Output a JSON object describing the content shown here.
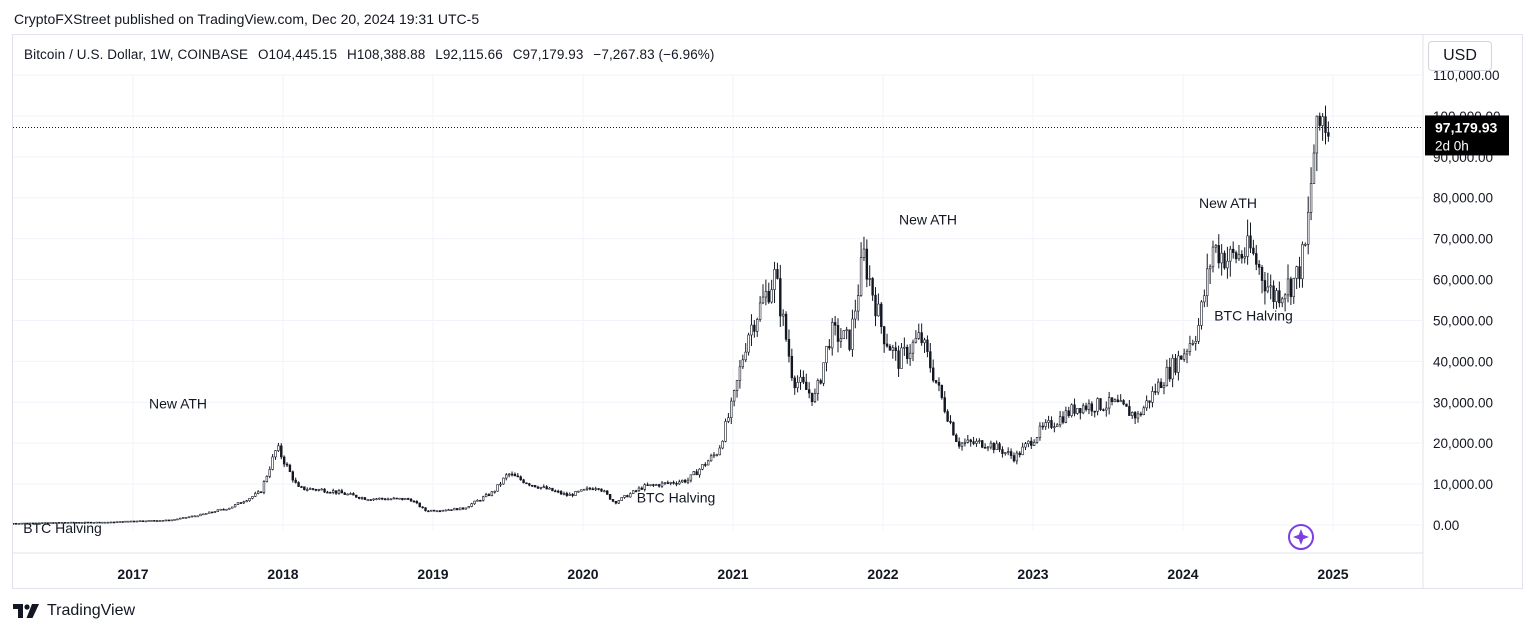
{
  "header": {
    "publish_line": "CryptoFXStreet published on TradingView.com, Dec 20, 2024 19:31 UTC-5"
  },
  "legend": {
    "symbol": "Bitcoin / U.S. Dollar, 1W, COINBASE",
    "open": "O104,445.15",
    "high": "H108,388.88",
    "low": "L92,115.66",
    "close": "C97,179.93",
    "change": "−7,267.83 (−6.96%)"
  },
  "currency_button": "USD",
  "last_price": {
    "price_label": "97,179.93",
    "countdown_label": "2d 0h"
  },
  "footer": {
    "brand": "TradingView"
  },
  "chart_data": {
    "type": "candlestick",
    "series": [
      {
        "name": "Bitcoin / U.S. Dollar, 1W, COINBASE"
      }
    ],
    "x_tick_labels": [
      "2017",
      "2018",
      "2019",
      "2020",
      "2021",
      "2022",
      "2023",
      "2024",
      "2025"
    ],
    "y_tick_labels": [
      "0.00",
      "10,000.00",
      "20,000.00",
      "30,000.00",
      "40,000.00",
      "50,000.00",
      "60,000.00",
      "70,000.00",
      "80,000.00",
      "90,000.00",
      "100,000.00",
      "110,000.00"
    ],
    "ylim": [
      0,
      110000
    ],
    "xlim": [
      2016.2,
      2025.6
    ],
    "last_value": 97179.93,
    "key_points": [
      {
        "t": 2016.2,
        "v": 420
      },
      {
        "t": 2016.55,
        "v": 650
      },
      {
        "t": 2016.85,
        "v": 700
      },
      {
        "t": 2017.0,
        "v": 1000
      },
      {
        "t": 2017.25,
        "v": 1200
      },
      {
        "t": 2017.45,
        "v": 2500
      },
      {
        "t": 2017.65,
        "v": 4300
      },
      {
        "t": 2017.85,
        "v": 8000
      },
      {
        "t": 2017.96,
        "v": 19000
      },
      {
        "t": 2018.1,
        "v": 9000
      },
      {
        "t": 2018.3,
        "v": 8500
      },
      {
        "t": 2018.55,
        "v": 6500
      },
      {
        "t": 2018.85,
        "v": 6300
      },
      {
        "t": 2018.95,
        "v": 3500
      },
      {
        "t": 2019.2,
        "v": 4000
      },
      {
        "t": 2019.4,
        "v": 8000
      },
      {
        "t": 2019.5,
        "v": 12500
      },
      {
        "t": 2019.65,
        "v": 10000
      },
      {
        "t": 2019.9,
        "v": 7200
      },
      {
        "t": 2020.1,
        "v": 9500
      },
      {
        "t": 2020.21,
        "v": 5500
      },
      {
        "t": 2020.4,
        "v": 9300
      },
      {
        "t": 2020.7,
        "v": 11000
      },
      {
        "t": 2020.9,
        "v": 18000
      },
      {
        "t": 2021.0,
        "v": 30000
      },
      {
        "t": 2021.1,
        "v": 47000
      },
      {
        "t": 2021.28,
        "v": 61000
      },
      {
        "t": 2021.4,
        "v": 36000
      },
      {
        "t": 2021.55,
        "v": 31000
      },
      {
        "t": 2021.65,
        "v": 47000
      },
      {
        "t": 2021.78,
        "v": 45000
      },
      {
        "t": 2021.87,
        "v": 66000
      },
      {
        "t": 2022.0,
        "v": 47000
      },
      {
        "t": 2022.1,
        "v": 40000
      },
      {
        "t": 2022.25,
        "v": 46000
      },
      {
        "t": 2022.4,
        "v": 30000
      },
      {
        "t": 2022.5,
        "v": 20000
      },
      {
        "t": 2022.7,
        "v": 20000
      },
      {
        "t": 2022.88,
        "v": 16500
      },
      {
        "t": 2023.05,
        "v": 23000
      },
      {
        "t": 2023.3,
        "v": 29000
      },
      {
        "t": 2023.55,
        "v": 29500
      },
      {
        "t": 2023.7,
        "v": 26500
      },
      {
        "t": 2023.85,
        "v": 35000
      },
      {
        "t": 2024.0,
        "v": 42000
      },
      {
        "t": 2024.1,
        "v": 48000
      },
      {
        "t": 2024.2,
        "v": 68000
      },
      {
        "t": 2024.3,
        "v": 65000
      },
      {
        "t": 2024.45,
        "v": 67000
      },
      {
        "t": 2024.6,
        "v": 56000
      },
      {
        "t": 2024.75,
        "v": 60000
      },
      {
        "t": 2024.82,
        "v": 68000
      },
      {
        "t": 2024.87,
        "v": 91000
      },
      {
        "t": 2024.93,
        "v": 100000
      },
      {
        "t": 2024.97,
        "v": 97180
      }
    ],
    "annotations": [
      {
        "text": "BTC Halving",
        "t": 2016.53,
        "v": -2000
      },
      {
        "text": "New ATH",
        "t": 2017.3,
        "v": 28500
      },
      {
        "text": "BTC Halving",
        "t": 2020.62,
        "v": 5500
      },
      {
        "text": "New ATH",
        "t": 2022.3,
        "v": 73500
      },
      {
        "text": "New ATH",
        "t": 2024.3,
        "v": 77500
      },
      {
        "text": "BTC Halving",
        "t": 2024.47,
        "v": 50000
      }
    ]
  }
}
